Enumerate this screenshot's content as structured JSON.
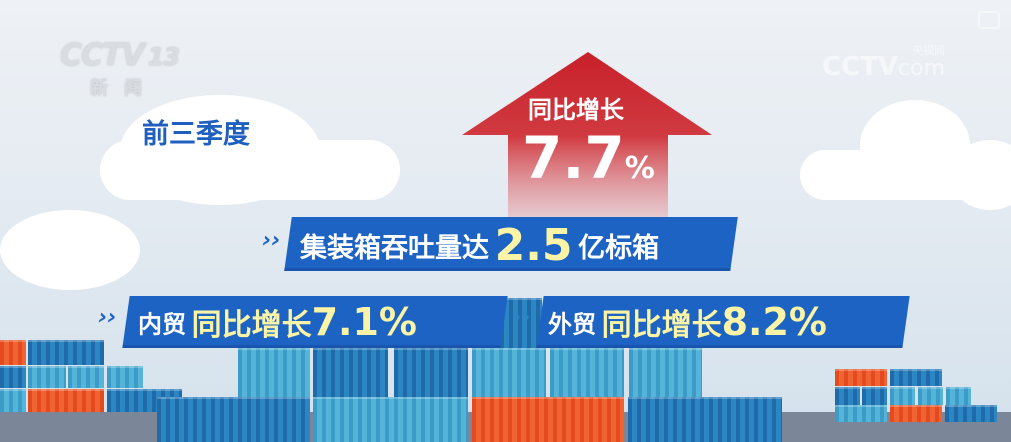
{
  "logos": {
    "channel": "CCTV",
    "channel_number": "13",
    "channel_name": "新闻",
    "watermark": "CCTV",
    "watermark_domain": "com",
    "watermark_cn": "央视网",
    "corner_icon": "picture-in-picture-icon"
  },
  "period": "前三季度",
  "arrow": {
    "label": "同比增长",
    "value": "7.7",
    "unit": "%"
  },
  "throughput": {
    "prefix": "集装箱吞吐量达",
    "value": "2.5",
    "suffix": "亿标箱"
  },
  "domestic": {
    "label": "内贸",
    "growth_label": "同比增长",
    "value": "7.1%"
  },
  "foreign": {
    "label": "外贸",
    "growth_label": "同比增长",
    "value": "8.2%"
  },
  "colors": {
    "banner_blue": "#1d63c4",
    "arrow_red": "#c8202a",
    "highlight_yellow": "#fbf4a6",
    "container_orange": "#e5491e"
  }
}
